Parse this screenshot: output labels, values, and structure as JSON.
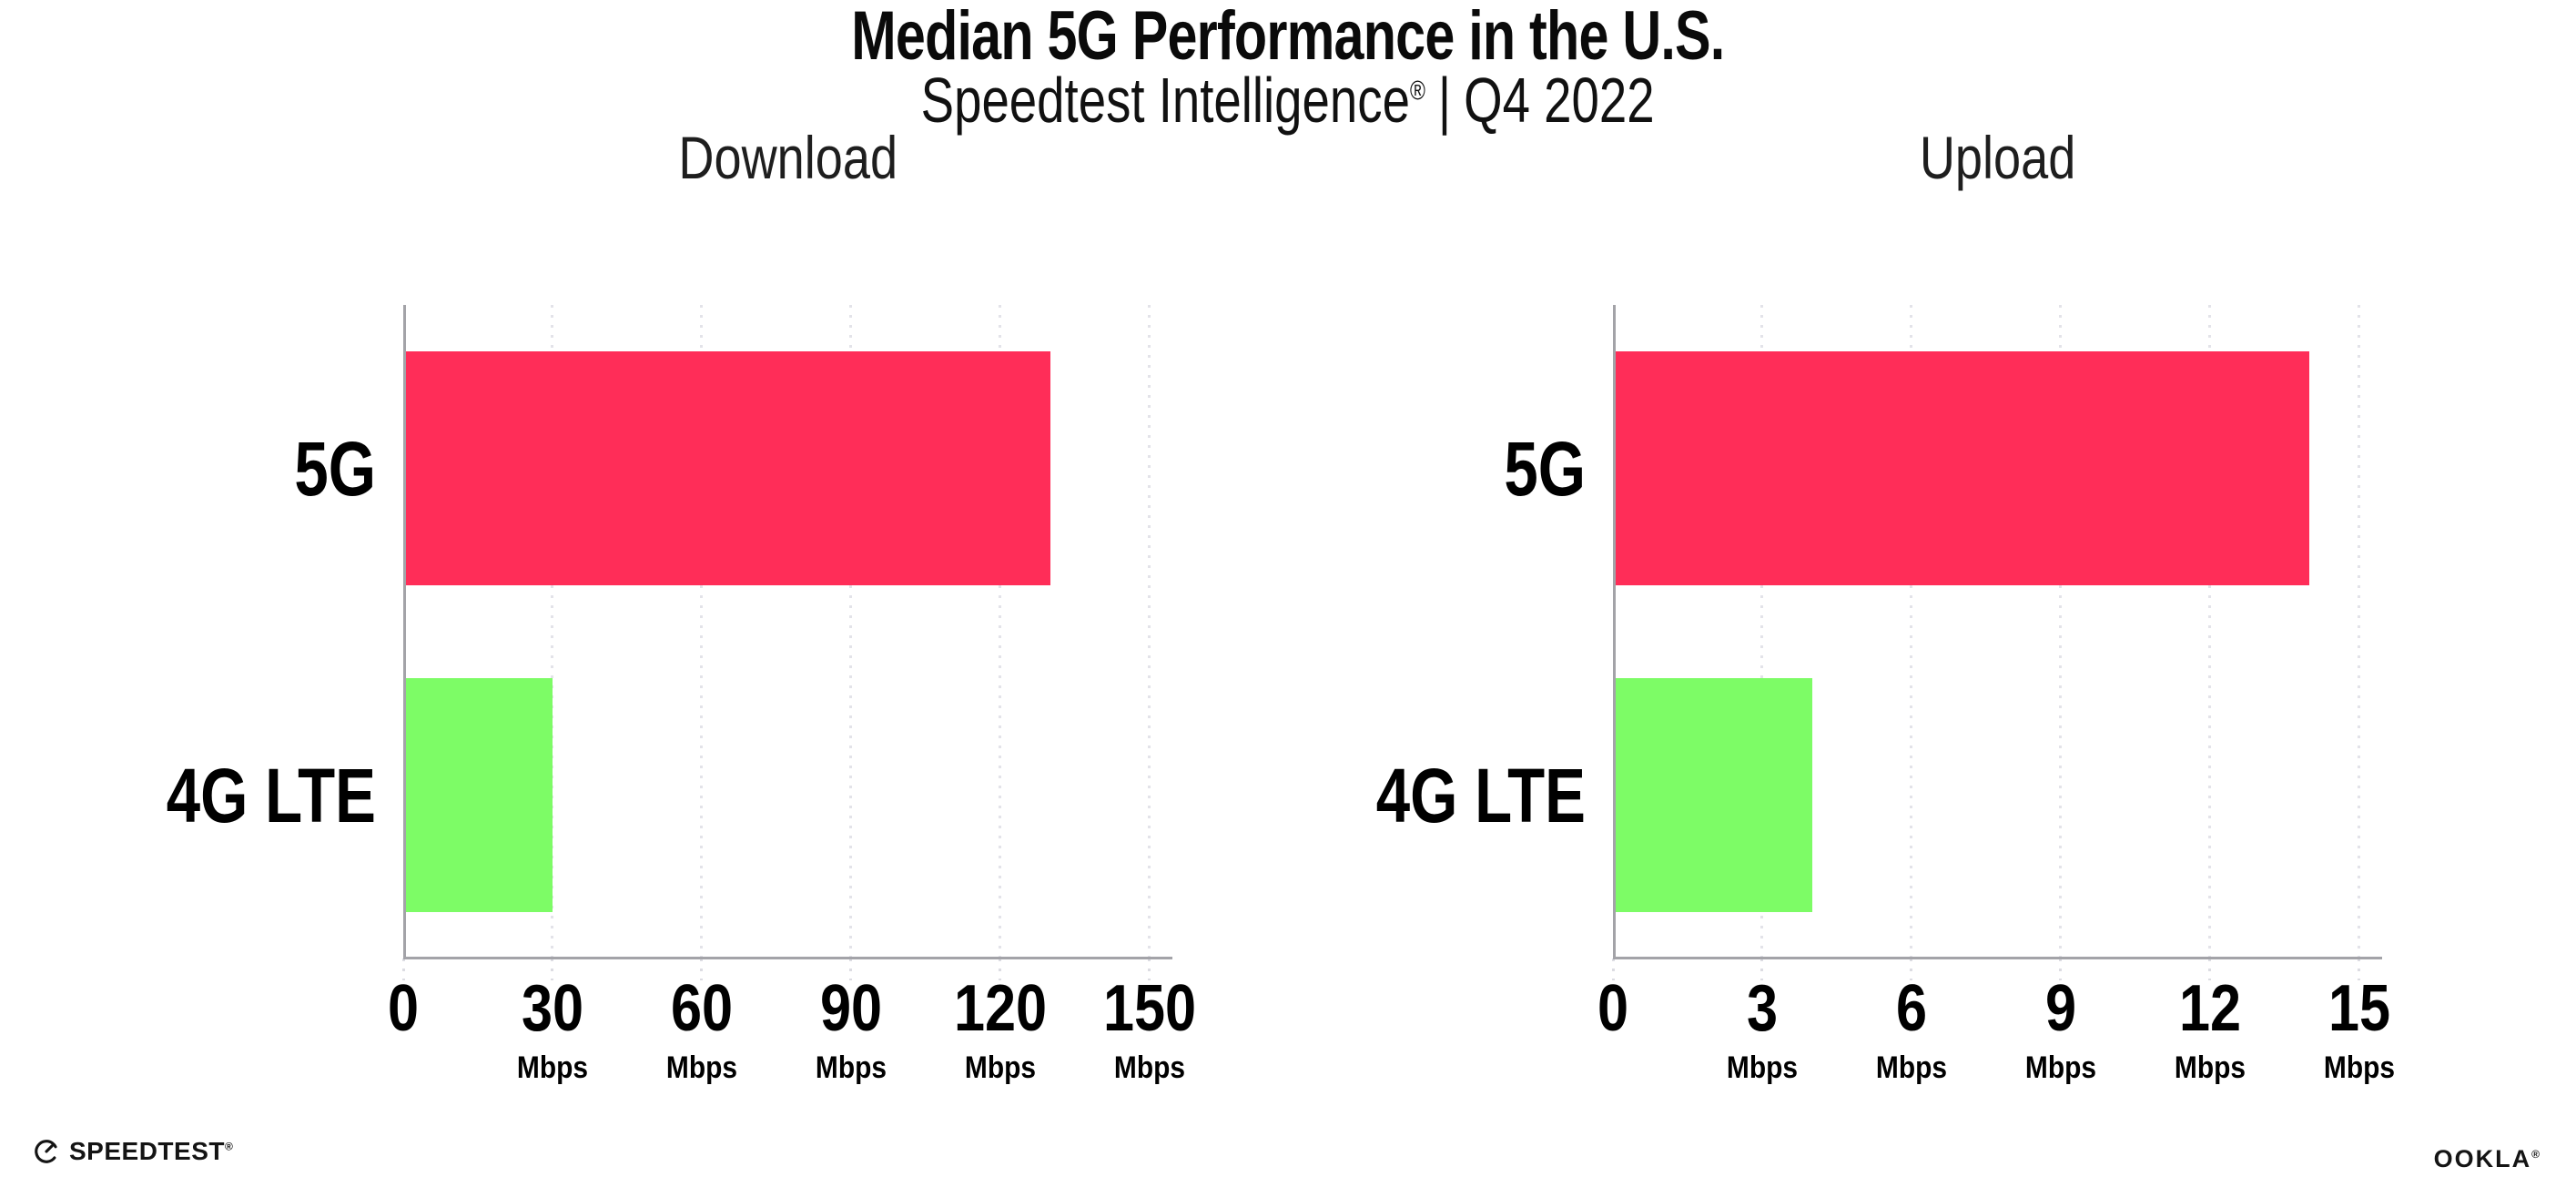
{
  "header": {
    "title": "Median 5G Performance in the U.S.",
    "subtitle_brand": "Speedtest Intelligence",
    "subtitle_reg": "®",
    "subtitle_separator": "|",
    "subtitle_period": "Q4 2022"
  },
  "footer": {
    "speedtest_label": "SPEEDTEST",
    "speedtest_reg": "®",
    "speedtest_icon": "speedtest-gauge-icon",
    "ookla_label": "OOKLA",
    "ookla_reg": "®"
  },
  "colors": {
    "bar_5g": "#FF2D58",
    "bar_4g_lte": "#7DFC66",
    "axis": "#A3A3A8",
    "gridline": "#E3E3E9",
    "text": "#0A0A0A"
  },
  "chart_data": [
    {
      "type": "bar",
      "orientation": "horizontal",
      "title": "Download",
      "categories": [
        "5G",
        "4G LTE"
      ],
      "values": [
        130,
        30
      ],
      "unit": "Mbps",
      "xlim": [
        0,
        150
      ],
      "xticks": [
        0,
        30,
        60,
        90,
        120,
        150
      ],
      "grid": "vertical-dotted",
      "legend": "none"
    },
    {
      "type": "bar",
      "orientation": "horizontal",
      "title": "Upload",
      "categories": [
        "5G",
        "4G LTE"
      ],
      "values": [
        14,
        4
      ],
      "unit": "Mbps",
      "xlim": [
        0,
        15
      ],
      "xticks": [
        0,
        3,
        6,
        9,
        12,
        15
      ],
      "grid": "vertical-dotted",
      "legend": "none"
    }
  ]
}
